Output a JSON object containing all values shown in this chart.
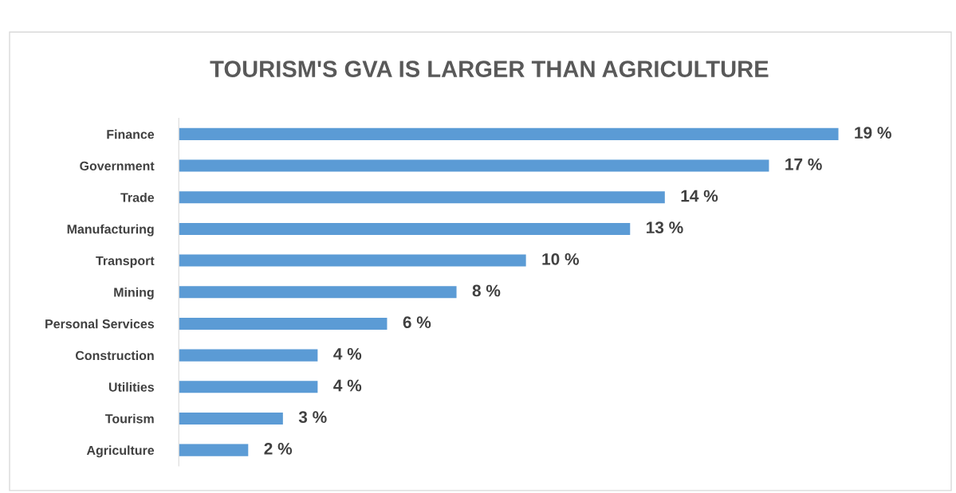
{
  "chart_data": {
    "type": "bar",
    "orientation": "horizontal",
    "title": "TOURISM'S GVA IS LARGER THAN AGRICULTURE",
    "categories": [
      "Finance",
      "Government",
      "Trade",
      "Manufacturing",
      "Transport",
      "Mining",
      "Personal Services",
      "Construction",
      "Utilities",
      "Tourism",
      "Agriculture"
    ],
    "values": [
      19,
      17,
      14,
      13,
      10,
      8,
      6,
      4,
      4,
      3,
      2
    ],
    "value_labels": [
      "19 %",
      "17 %",
      "14 %",
      "13 %",
      "10 %",
      "8 %",
      "6 %",
      "4 %",
      "4 %",
      "3 %",
      "2 %"
    ],
    "color": "#5b9bd5"
  }
}
